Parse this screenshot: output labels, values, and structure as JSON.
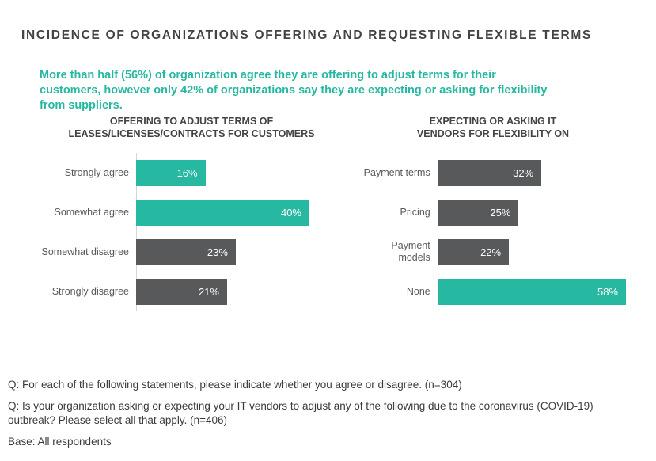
{
  "page": {
    "title": "INCIDENCE OF ORGANIZATIONS OFFERING AND REQUESTING FLEXIBLE TERMS",
    "subtitle": "More than half (56%) of organization agree they are offering to adjust terms for their customers, however only 42% of organizations say they are expecting or asking for flexibility from suppliers."
  },
  "colors": {
    "accent": "#26B8A0",
    "neutral": "#58595B",
    "axis_line": "#D5D5D5",
    "heading_text": "#414347",
    "category_text": "#58595B",
    "value_text": "#FFFFFF",
    "footnote_text": "#3A3B3C"
  },
  "chart_data": [
    {
      "type": "bar",
      "orientation": "horizontal",
      "title": "OFFERING TO ADJUST TERMS OF\nLEASES/LICENSES/CONTRACTS FOR CUSTOMERS",
      "categories": [
        "Strongly agree",
        "Somewhat agree",
        "Somewhat disagree",
        "Strongly disagree"
      ],
      "values": [
        16,
        40,
        23,
        21
      ],
      "value_labels": [
        "16%",
        "40%",
        "23%",
        "21%"
      ],
      "emphasis": [
        "accent",
        "accent",
        "neutral",
        "neutral"
      ],
      "xlim": [
        0,
        40
      ],
      "grid": false,
      "value_label_position": "inside-end",
      "n": 304
    },
    {
      "type": "bar",
      "orientation": "horizontal",
      "title": "EXPECTING OR ASKING IT\nVENDORS FOR FLEXIBILITY ON",
      "categories": [
        "Payment terms",
        "Pricing",
        "Payment models",
        "None"
      ],
      "values": [
        32,
        25,
        22,
        58
      ],
      "value_labels": [
        "32%",
        "25%",
        "22%",
        "58%"
      ],
      "emphasis": [
        "neutral",
        "neutral",
        "neutral",
        "accent"
      ],
      "xlim": [
        0,
        58
      ],
      "grid": false,
      "value_label_position": "inside-end",
      "n": 406
    }
  ],
  "footnotes": [
    "Q: For each of the following statements, please indicate whether you agree or disagree. (n=304)",
    "Q: Is your organization asking or expecting your IT vendors to adjust any of the following due to the coronavirus (COVID-19) outbreak? Please select all that apply. (n=406)",
    "Base: All respondents"
  ]
}
